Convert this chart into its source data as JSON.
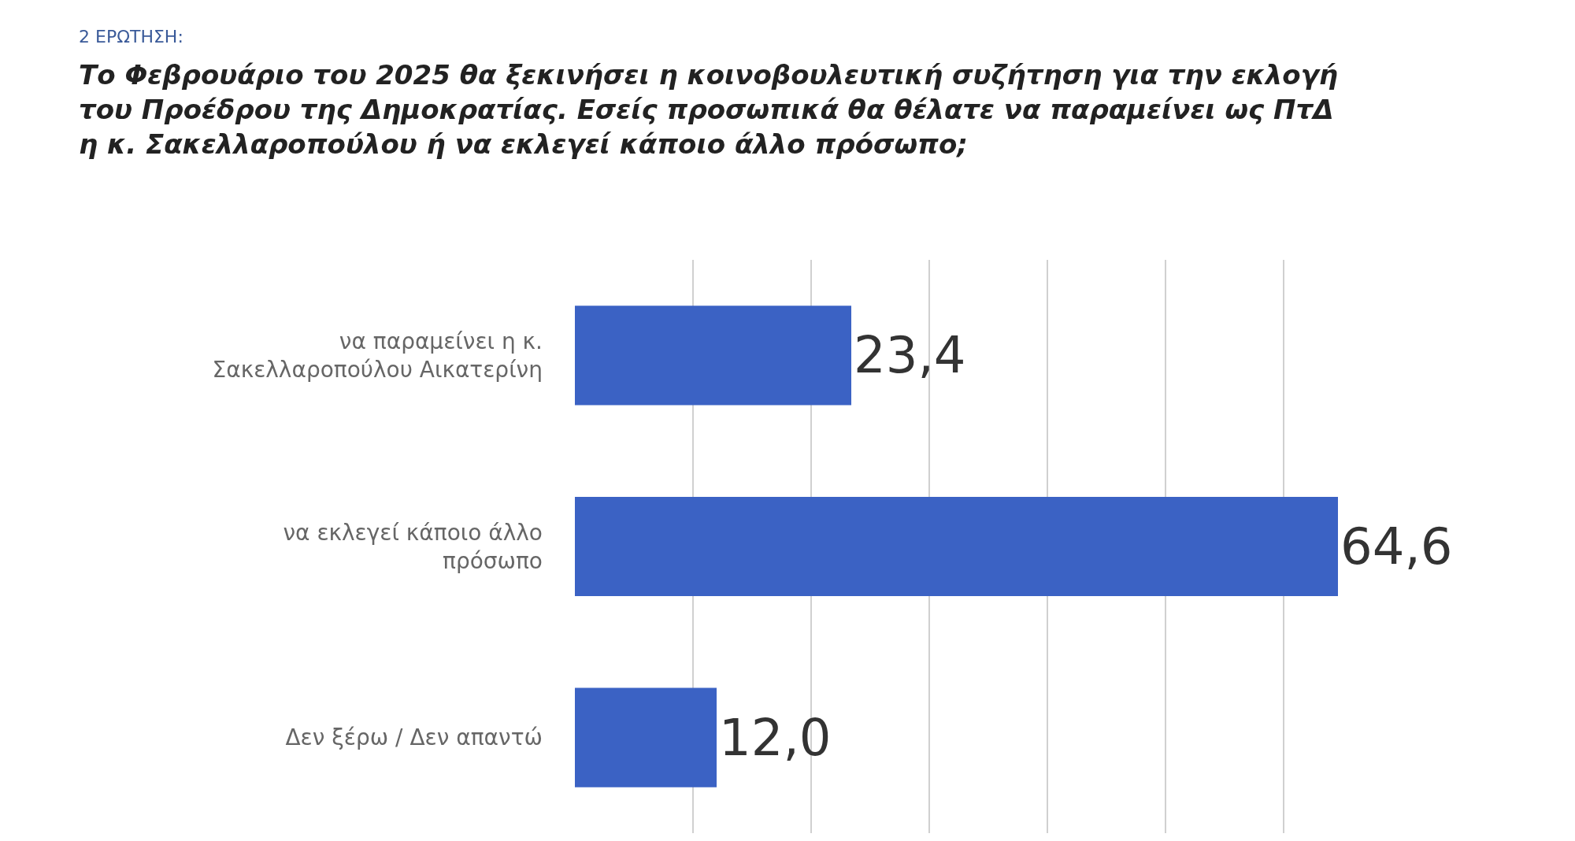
{
  "chart_data": {
    "type": "bar",
    "orientation": "horizontal",
    "title": "Το Φεβρουάριο του 2025 θα ξεκινήσει η κοινοβουλευτική συζήτηση για την εκλογή\nτου Προέδρου της Δημοκρατίας. Εσείς προσωπικά θα θέλατε να παραμείνει ως ΠτΔ\nη κ. Σακελλαροπούλου ή να εκλεγεί κάποιο άλλο πρόσωπο;",
    "annotations": [
      "2 ΕΡΩΤΗΣΗ:"
    ],
    "categories": [
      "να παραμείνει η κ.\nΣακελλαροπούλου Αικατερίνη",
      "να εκλεγεί κάποιο άλλο\nπρόσωπο",
      "Δεν ξέρω / Δεν απαντώ"
    ],
    "values": [
      23.4,
      64.6,
      12.0
    ],
    "value_labels": [
      "23,4",
      "64,6",
      "12,0"
    ],
    "color": "#3b62c4",
    "grid": "x",
    "tick_labels": "y",
    "legend": false
  }
}
